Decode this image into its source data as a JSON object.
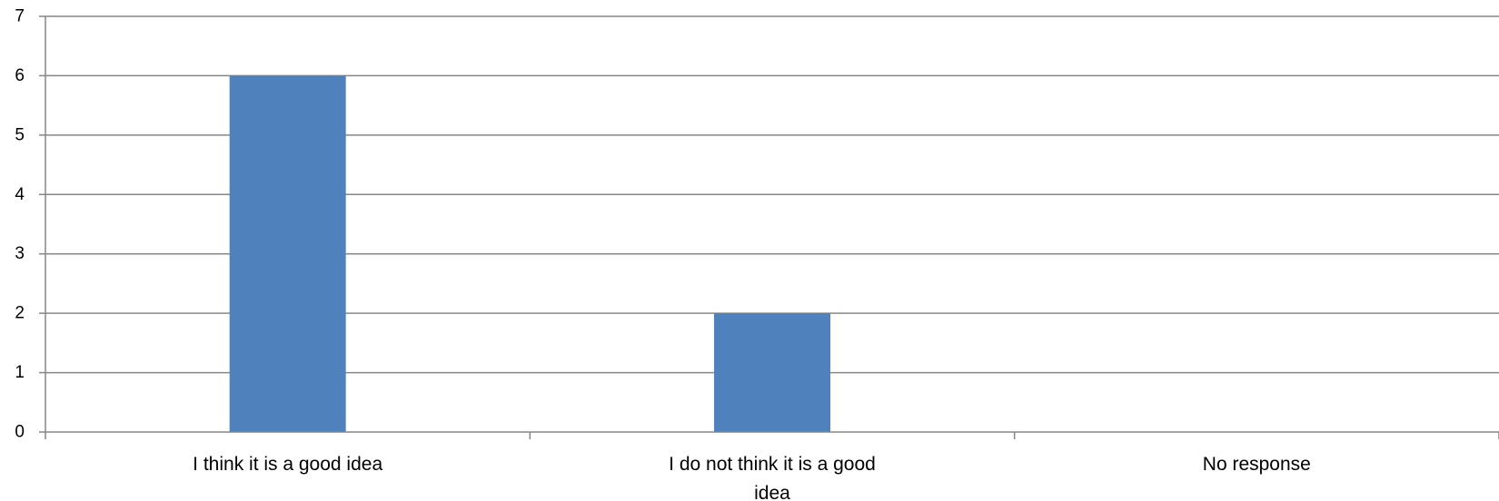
{
  "chart_data": {
    "type": "bar",
    "categories": [
      [
        "I think it is a good idea"
      ],
      [
        "I do not think it is a good",
        "idea"
      ],
      [
        "No response"
      ]
    ],
    "values": [
      6,
      2,
      0
    ],
    "ylim": [
      0,
      7
    ],
    "yticks": [
      "0",
      "1",
      "2",
      "3",
      "4",
      "5",
      "6",
      "7"
    ],
    "grid": true,
    "legend": "none",
    "bar_color": "#4f81bd",
    "grid_color": "#868686",
    "axis_color": "#868686"
  }
}
